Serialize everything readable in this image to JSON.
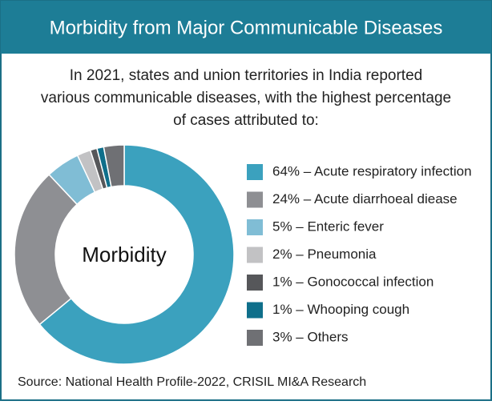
{
  "chart_data": {
    "type": "donut",
    "title": "Morbidity from Major Communicable Diseases",
    "subtitle": [
      "In 2021, states and union territories in India reported",
      "various communicable diseases, with the highest percentage",
      "of cases attributed to:"
    ],
    "center_label": "Morbidity",
    "labels": [
      "64% – Acute respiratory infection",
      "24% – Acute diarrhoeal diease",
      "5% – Enteric fever",
      "2% – Pneumonia",
      "1% – Gonococcal infection",
      "1% – Whooping cough",
      "3% – Others"
    ],
    "values": [
      64,
      24,
      5,
      2,
      1,
      1,
      3
    ],
    "colors": [
      "#3ba1be",
      "#8e8f93",
      "#80bdd5",
      "#c2c2c4",
      "#56575a",
      "#0f6f8b",
      "#6f7074"
    ],
    "source": "Source: National Health Profile-2022, CRISIL MI&A Research"
  }
}
